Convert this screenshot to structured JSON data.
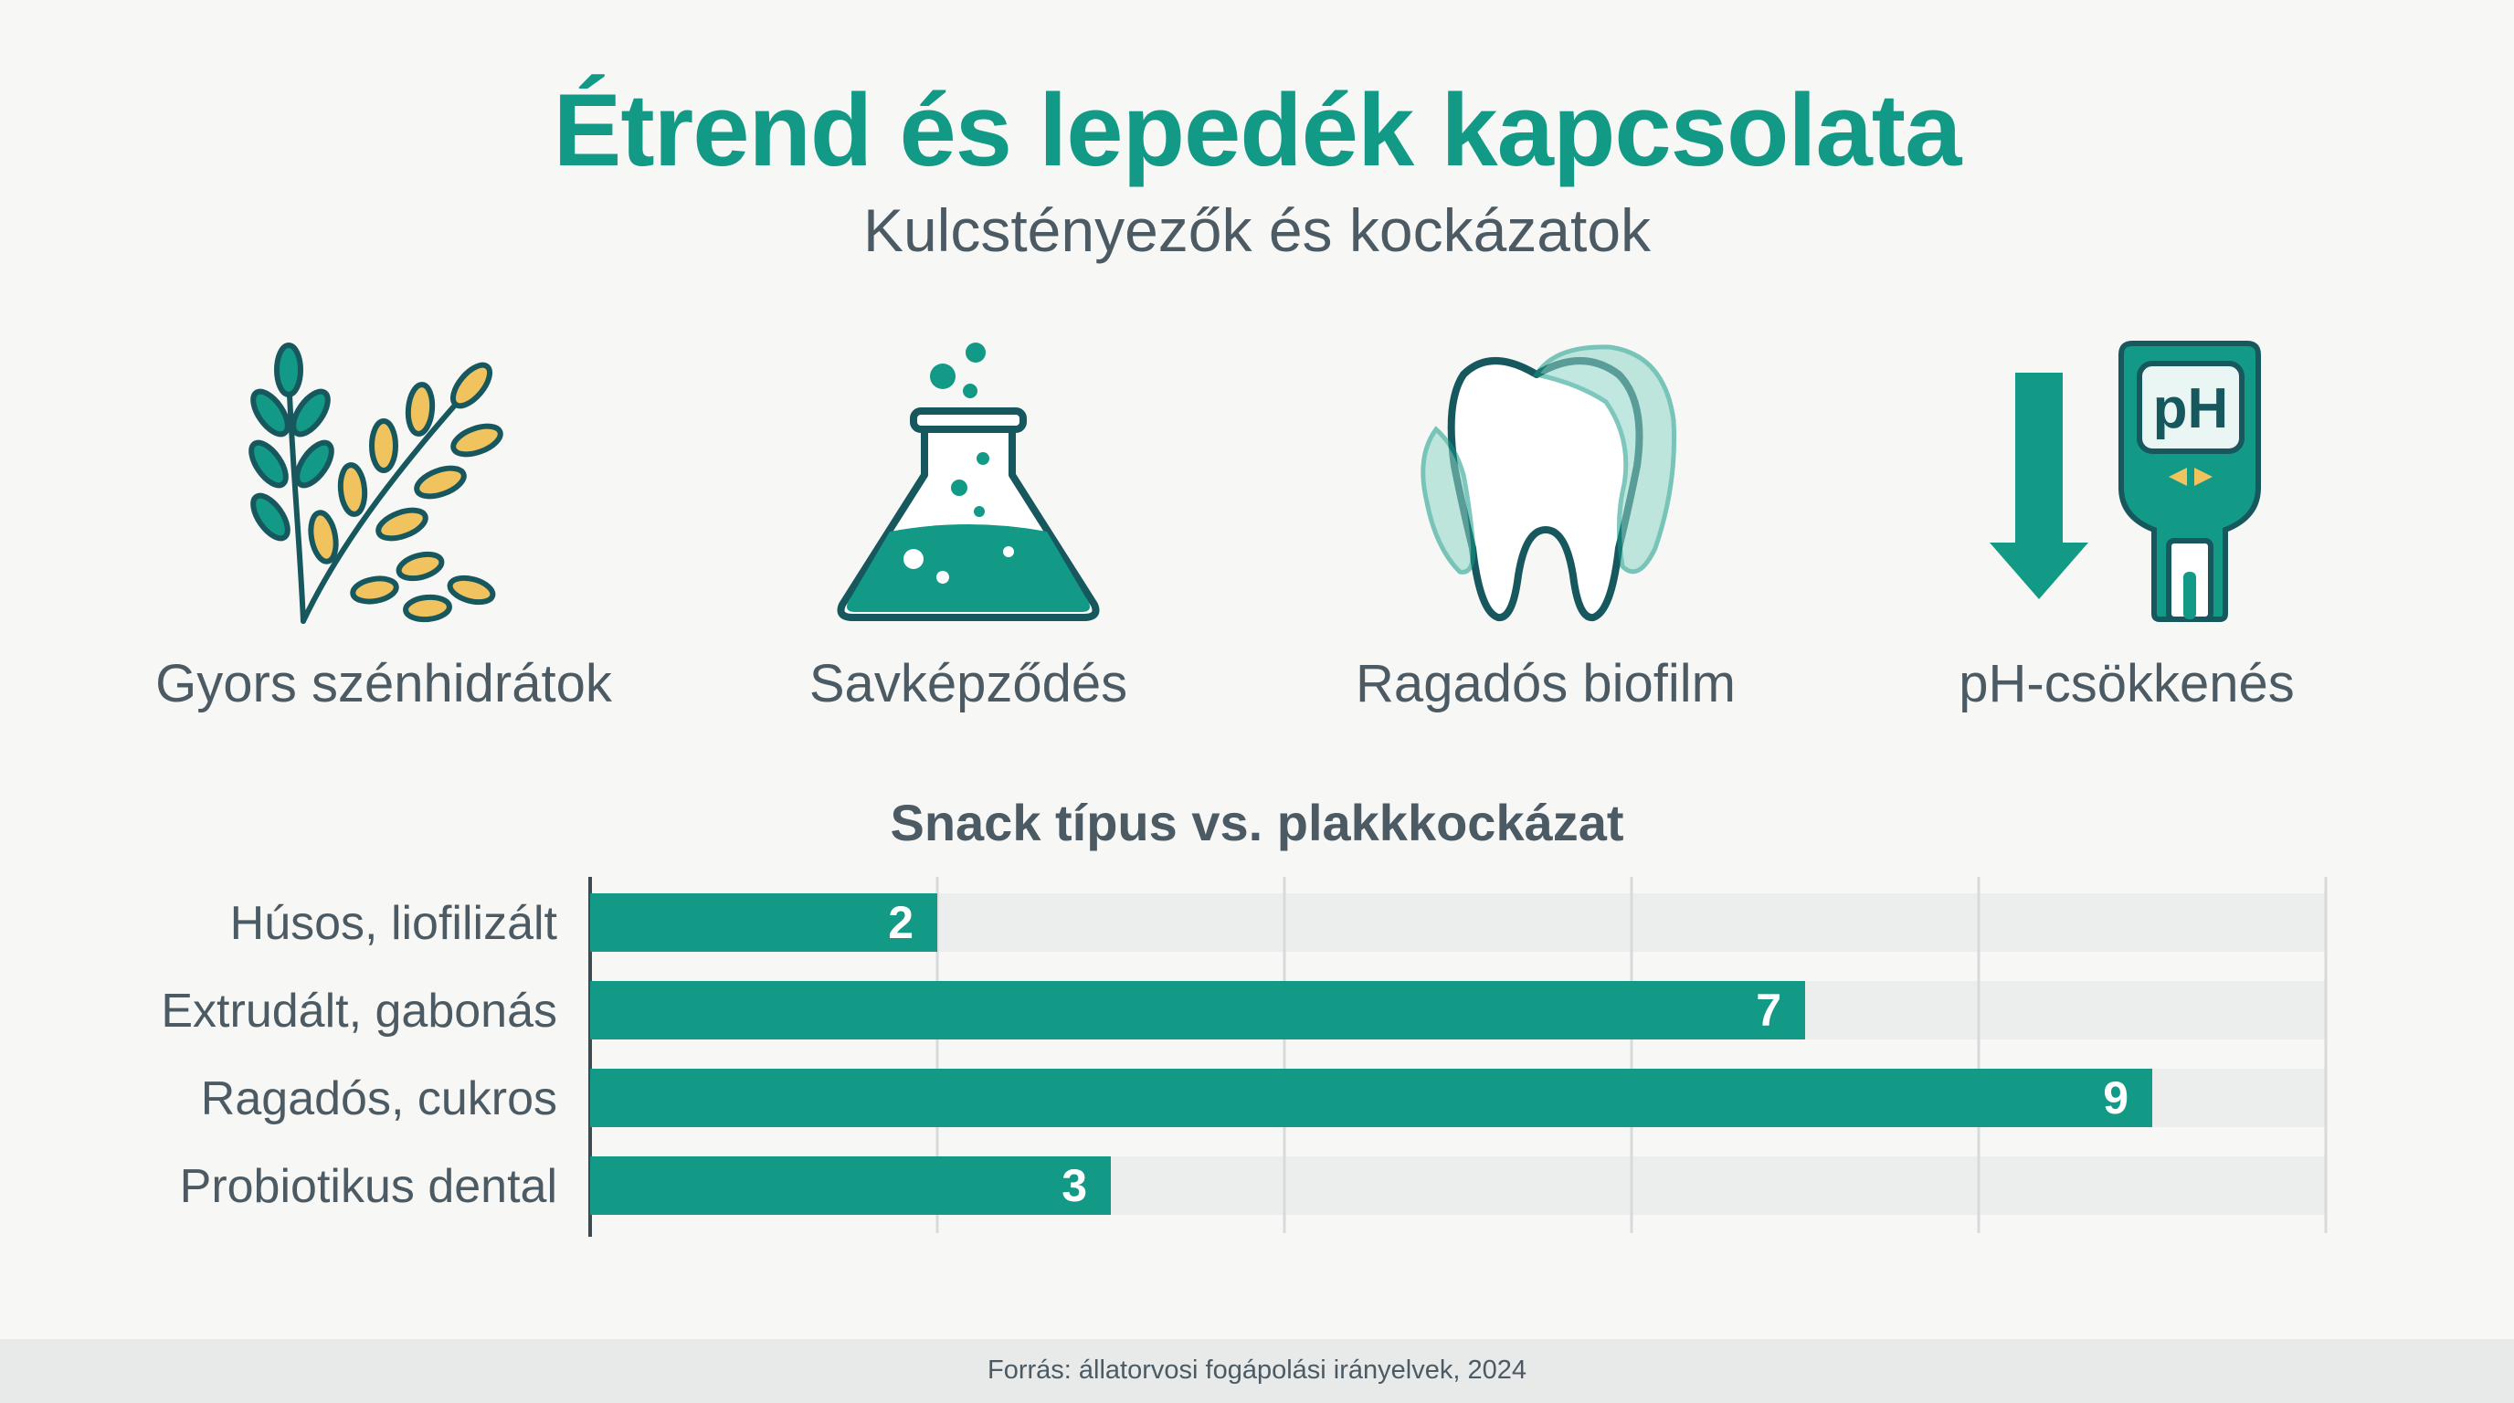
{
  "header": {
    "title": "Étrend és lepedék kapcsolata",
    "subtitle": "Kulcstényezők és kockázatok"
  },
  "factors": [
    {
      "label": "Gyors szénhidrátok",
      "icon": "wheat-icon"
    },
    {
      "label": "Savképződés",
      "icon": "flask-icon"
    },
    {
      "label": "Ragadós biofilm",
      "icon": "tooth-biofilm-icon"
    },
    {
      "label": "pH-csökkenés",
      "icon": "ph-meter-down-icon"
    }
  ],
  "colors": {
    "teal": "#139a86",
    "dark_teal": "#17575e",
    "gold": "#f0c35f",
    "text": "#4c5b63",
    "track": "#eceded"
  },
  "ph_meter_text": "pH",
  "chart_data": {
    "type": "bar",
    "orientation": "horizontal",
    "title": "Snack típus vs. plakkkockázat",
    "categories": [
      "Húsos, liofilizált",
      "Extrudált, gabonás",
      "Ragadós, cukros",
      "Probiotikus dental"
    ],
    "values": [
      2,
      7,
      9,
      3
    ],
    "xlim": [
      0,
      10
    ],
    "grid": true,
    "data_labels": true
  },
  "footer": {
    "source": "Forrás: állatorvosi fogápolási irányelvek, 2024"
  }
}
